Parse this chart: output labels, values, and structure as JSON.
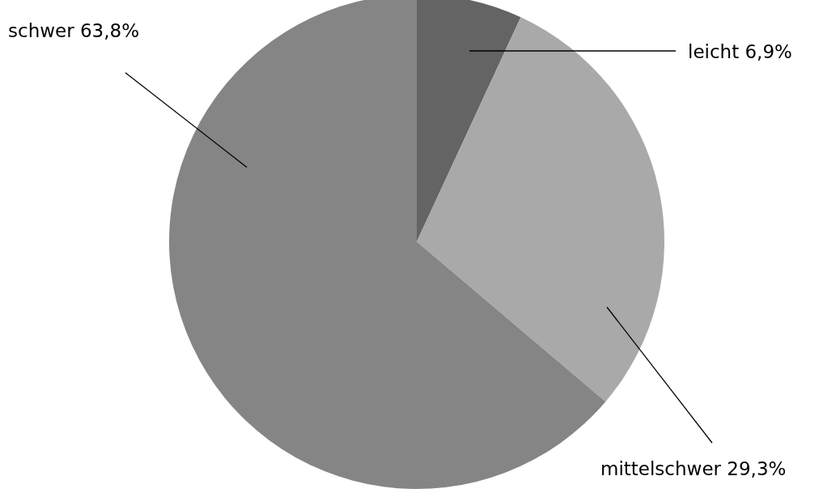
{
  "chart_data": {
    "type": "pie",
    "categories": [
      "leicht",
      "mittelschwer",
      "schwer"
    ],
    "values": [
      6.9,
      29.3,
      63.8
    ],
    "colors": [
      "#646464",
      "#a9a9a9",
      "#858585"
    ],
    "value_labels": [
      "6,9%",
      "29,3%",
      "63,8%"
    ]
  }
}
